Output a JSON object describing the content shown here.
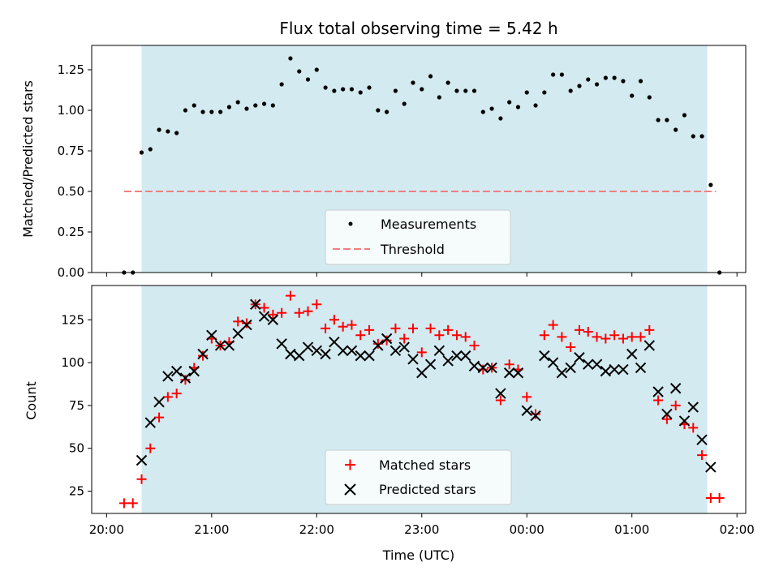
{
  "chart_data": [
    {
      "type": "scatter",
      "title": "Flux total observing time = 5.42 h",
      "ylabel": "Matched/Predicted stars",
      "xlabel": "",
      "xlim": [
        "20:00",
        "02:00"
      ],
      "ylim": [
        0,
        1.4
      ],
      "yticks": [
        "0.00",
        "0.25",
        "0.50",
        "0.75",
        "1.00",
        "1.25"
      ],
      "shaded_span": {
        "start": "20:20",
        "end": "01:43",
        "color": "#d3eaf1"
      },
      "threshold": {
        "name": "Threshold",
        "y": 0.5,
        "start": "20:10",
        "end": "01:48",
        "color": "#f08080"
      },
      "legend": {
        "placement": "lower-center",
        "entries": [
          "Measurements",
          "Threshold"
        ]
      },
      "series": [
        {
          "name": "Measurements",
          "marker": "dot",
          "color": "#000000",
          "points": [
            [
              "20:10",
              0.0
            ],
            [
              "20:15",
              0.0
            ],
            [
              "20:20",
              0.74
            ],
            [
              "20:25",
              0.76
            ],
            [
              "20:30",
              0.88
            ],
            [
              "20:35",
              0.87
            ],
            [
              "20:40",
              0.86
            ],
            [
              "20:45",
              1.0
            ],
            [
              "20:50",
              1.03
            ],
            [
              "20:55",
              0.99
            ],
            [
              "21:00",
              0.99
            ],
            [
              "21:05",
              0.99
            ],
            [
              "21:10",
              1.02
            ],
            [
              "21:15",
              1.05
            ],
            [
              "21:20",
              1.01
            ],
            [
              "21:25",
              1.03
            ],
            [
              "21:30",
              1.04
            ],
            [
              "21:35",
              1.03
            ],
            [
              "21:40",
              1.16
            ],
            [
              "21:45",
              1.32
            ],
            [
              "21:50",
              1.24
            ],
            [
              "21:55",
              1.19
            ],
            [
              "22:00",
              1.25
            ],
            [
              "22:05",
              1.14
            ],
            [
              "22:10",
              1.12
            ],
            [
              "22:15",
              1.13
            ],
            [
              "22:20",
              1.13
            ],
            [
              "22:25",
              1.11
            ],
            [
              "22:30",
              1.14
            ],
            [
              "22:35",
              1.0
            ],
            [
              "22:40",
              0.99
            ],
            [
              "22:45",
              1.12
            ],
            [
              "22:50",
              1.04
            ],
            [
              "22:55",
              1.17
            ],
            [
              "23:00",
              1.13
            ],
            [
              "23:05",
              1.21
            ],
            [
              "23:10",
              1.08
            ],
            [
              "23:15",
              1.17
            ],
            [
              "23:20",
              1.12
            ],
            [
              "23:25",
              1.12
            ],
            [
              "23:30",
              1.12
            ],
            [
              "23:35",
              0.99
            ],
            [
              "23:40",
              1.01
            ],
            [
              "23:45",
              0.95
            ],
            [
              "23:50",
              1.05
            ],
            [
              "23:55",
              1.02
            ],
            [
              "00:00",
              1.11
            ],
            [
              "00:05",
              1.03
            ],
            [
              "00:10",
              1.11
            ],
            [
              "00:15",
              1.22
            ],
            [
              "00:20",
              1.22
            ],
            [
              "00:25",
              1.12
            ],
            [
              "00:30",
              1.15
            ],
            [
              "00:35",
              1.19
            ],
            [
              "00:40",
              1.16
            ],
            [
              "00:45",
              1.2
            ],
            [
              "00:50",
              1.2
            ],
            [
              "00:55",
              1.18
            ],
            [
              "01:00",
              1.09
            ],
            [
              "01:05",
              1.18
            ],
            [
              "01:10",
              1.08
            ],
            [
              "01:15",
              0.94
            ],
            [
              "01:20",
              0.94
            ],
            [
              "01:25",
              0.88
            ],
            [
              "01:30",
              0.97
            ],
            [
              "01:35",
              0.84
            ],
            [
              "01:40",
              0.84
            ],
            [
              "01:45",
              0.54
            ],
            [
              "01:50",
              0.0
            ]
          ]
        }
      ]
    },
    {
      "type": "scatter",
      "title": "",
      "ylabel": "Count",
      "xlabel": "Time (UTC)",
      "xlim": [
        "20:00",
        "02:00"
      ],
      "xticks": [
        "20:00",
        "21:00",
        "22:00",
        "23:00",
        "00:00",
        "01:00",
        "02:00"
      ],
      "ylim": [
        12,
        145
      ],
      "yticks": [
        "25",
        "50",
        "75",
        "100",
        "125"
      ],
      "shaded_span": {
        "start": "20:20",
        "end": "01:43",
        "color": "#d3eaf1"
      },
      "legend": {
        "placement": "lower-center",
        "entries": [
          "Matched stars",
          "Predicted stars"
        ]
      },
      "series": [
        {
          "name": "Matched stars",
          "marker": "plus",
          "color": "#ff0000",
          "points": [
            [
              "20:10",
              18
            ],
            [
              "20:15",
              18
            ],
            [
              "20:20",
              32
            ],
            [
              "20:25",
              50
            ],
            [
              "20:30",
              68
            ],
            [
              "20:35",
              80
            ],
            [
              "20:40",
              82
            ],
            [
              "20:45",
              90
            ],
            [
              "20:50",
              97
            ],
            [
              "20:55",
              104
            ],
            [
              "21:00",
              114
            ],
            [
              "21:05",
              110
            ],
            [
              "21:10",
              112
            ],
            [
              "21:15",
              124
            ],
            [
              "21:20",
              123
            ],
            [
              "21:25",
              134
            ],
            [
              "21:30",
              132
            ],
            [
              "21:35",
              128
            ],
            [
              "21:40",
              129
            ],
            [
              "21:45",
              139
            ],
            [
              "21:50",
              129
            ],
            [
              "21:55",
              130
            ],
            [
              "22:00",
              134
            ],
            [
              "22:05",
              120
            ],
            [
              "22:10",
              125
            ],
            [
              "22:15",
              121
            ],
            [
              "22:20",
              122
            ],
            [
              "22:25",
              116
            ],
            [
              "22:30",
              119
            ],
            [
              "22:35",
              111
            ],
            [
              "22:40",
              113
            ],
            [
              "22:45",
              120
            ],
            [
              "22:50",
              114
            ],
            [
              "22:55",
              120
            ],
            [
              "23:00",
              106
            ],
            [
              "23:05",
              120
            ],
            [
              "23:10",
              116
            ],
            [
              "23:15",
              119
            ],
            [
              "23:20",
              116
            ],
            [
              "23:25",
              115
            ],
            [
              "23:30",
              110
            ],
            [
              "23:35",
              96
            ],
            [
              "23:40",
              97
            ],
            [
              "23:45",
              78
            ],
            [
              "23:50",
              99
            ],
            [
              "23:55",
              96
            ],
            [
              "00:00",
              80
            ],
            [
              "00:05",
              70
            ],
            [
              "00:10",
              116
            ],
            [
              "00:15",
              122
            ],
            [
              "00:20",
              115
            ],
            [
              "00:25",
              109
            ],
            [
              "00:30",
              119
            ],
            [
              "00:35",
              118
            ],
            [
              "00:40",
              115
            ],
            [
              "00:45",
              114
            ],
            [
              "00:50",
              116
            ],
            [
              "00:55",
              114
            ],
            [
              "01:00",
              115
            ],
            [
              "01:05",
              115
            ],
            [
              "01:10",
              119
            ],
            [
              "01:15",
              78
            ],
            [
              "01:20",
              67
            ],
            [
              "01:25",
              75
            ],
            [
              "01:30",
              64
            ],
            [
              "01:35",
              62
            ],
            [
              "01:40",
              46
            ],
            [
              "01:45",
              21
            ],
            [
              "01:50",
              21
            ]
          ]
        },
        {
          "name": "Predicted stars",
          "marker": "cross",
          "color": "#000000",
          "points": [
            [
              "20:20",
              43
            ],
            [
              "20:25",
              65
            ],
            [
              "20:30",
              77
            ],
            [
              "20:35",
              92
            ],
            [
              "20:40",
              95
            ],
            [
              "20:45",
              91
            ],
            [
              "20:50",
              95
            ],
            [
              "20:55",
              105
            ],
            [
              "21:00",
              116
            ],
            [
              "21:05",
              110
            ],
            [
              "21:10",
              110
            ],
            [
              "21:15",
              117
            ],
            [
              "21:20",
              122
            ],
            [
              "21:25",
              134
            ],
            [
              "21:30",
              127
            ],
            [
              "21:35",
              125
            ],
            [
              "21:40",
              111
            ],
            [
              "21:45",
              105
            ],
            [
              "21:50",
              104
            ],
            [
              "21:55",
              109
            ],
            [
              "22:00",
              107
            ],
            [
              "22:05",
              105
            ],
            [
              "22:10",
              112
            ],
            [
              "22:15",
              107
            ],
            [
              "22:20",
              107
            ],
            [
              "22:25",
              104
            ],
            [
              "22:30",
              104
            ],
            [
              "22:35",
              110
            ],
            [
              "22:40",
              114
            ],
            [
              "22:45",
              107
            ],
            [
              "22:50",
              109
            ],
            [
              "22:55",
              102
            ],
            [
              "23:00",
              94
            ],
            [
              "23:05",
              99
            ],
            [
              "23:10",
              107
            ],
            [
              "23:15",
              101
            ],
            [
              "23:20",
              104
            ],
            [
              "23:25",
              104
            ],
            [
              "23:30",
              98
            ],
            [
              "23:35",
              97
            ],
            [
              "23:40",
              97
            ],
            [
              "23:45",
              82
            ],
            [
              "23:50",
              94
            ],
            [
              "23:55",
              94
            ],
            [
              "00:00",
              72
            ],
            [
              "00:05",
              69
            ],
            [
              "00:10",
              104
            ],
            [
              "00:15",
              100
            ],
            [
              "00:20",
              94
            ],
            [
              "00:25",
              97
            ],
            [
              "00:30",
              103
            ],
            [
              "00:35",
              99
            ],
            [
              "00:40",
              99
            ],
            [
              "00:45",
              95
            ],
            [
              "00:50",
              96
            ],
            [
              "00:55",
              96
            ],
            [
              "01:00",
              105
            ],
            [
              "01:05",
              97
            ],
            [
              "01:10",
              110
            ],
            [
              "01:15",
              83
            ],
            [
              "01:20",
              70
            ],
            [
              "01:25",
              85
            ],
            [
              "01:30",
              66
            ],
            [
              "01:35",
              74
            ],
            [
              "01:40",
              55
            ],
            [
              "01:45",
              39
            ]
          ]
        }
      ]
    }
  ]
}
